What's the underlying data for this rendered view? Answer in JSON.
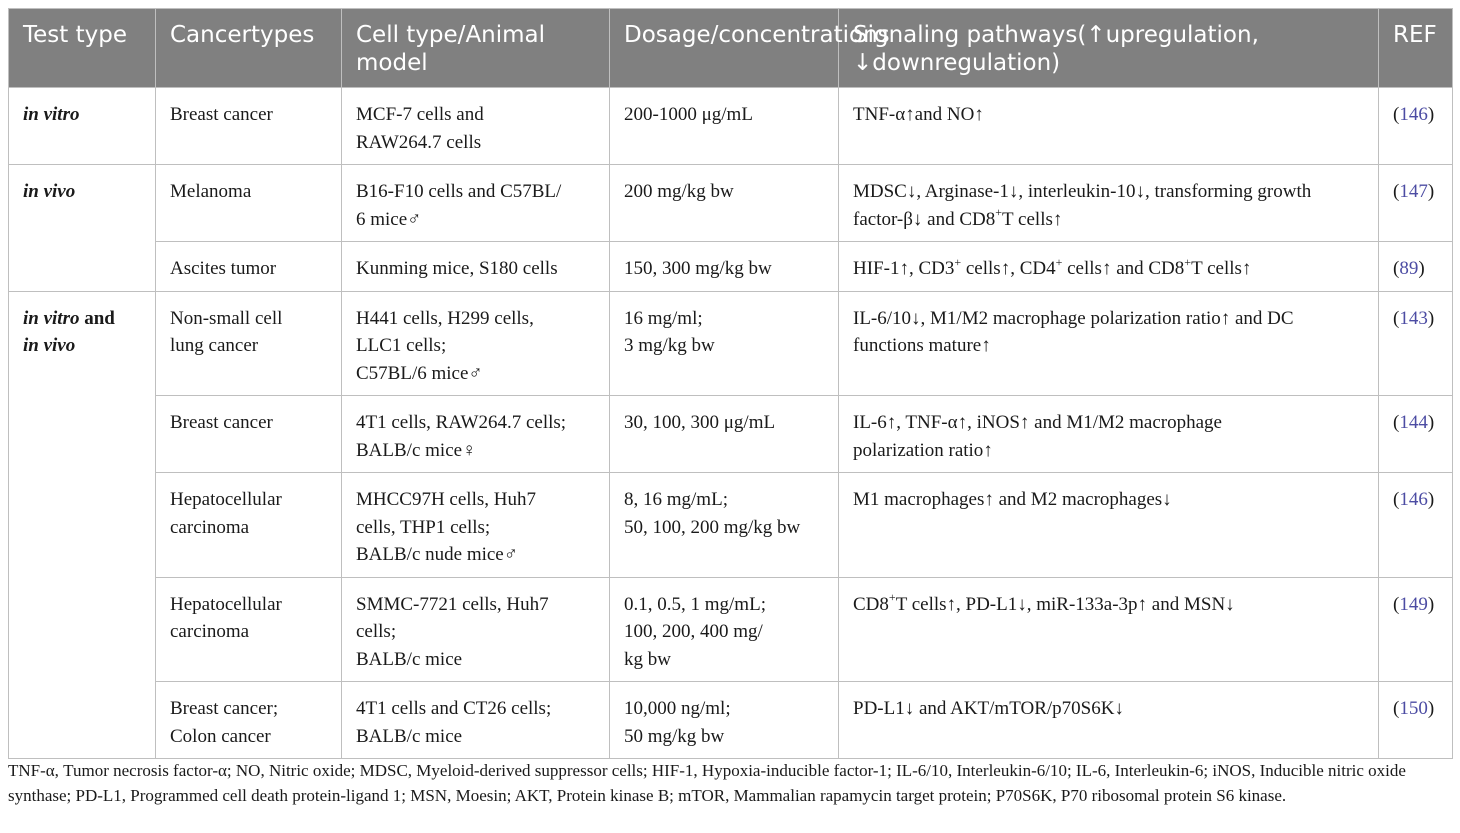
{
  "header": [
    "Test type",
    "Cancer types",
    "Cell type/ Animal model",
    "Dosage/ concentrations",
    "Signaling pathways (↑upregulation, ↓downregulation)",
    "REF"
  ],
  "header_lines": [
    [
      "Test type"
    ],
    [
      "Cancer",
      "types"
    ],
    [
      "Cell type/",
      "Animal model"
    ],
    [
      "Dosage/",
      "concentrations"
    ],
    [
      "Signaling pathways",
      "(↑upregulation, ↓downregulation)"
    ],
    [
      "REF"
    ]
  ],
  "groups": [
    {
      "test_type": "in vitro"
    },
    {
      "test_type": "in vivo"
    },
    {
      "test_type_a": "in vitro",
      "test_type_and": " and",
      "test_type_b": "in vivo"
    }
  ],
  "rows": [
    {
      "cancer": [
        "Breast cancer"
      ],
      "cells": [
        "MCF-7 cells and",
        "RAW264.7 cells"
      ],
      "dosage": [
        "200-1000 μg/mL"
      ],
      "ref": "146"
    },
    {
      "cancer": [
        "Melanoma"
      ],
      "cells": [
        "B16-F10 cells and C57BL/",
        "6 mice♂"
      ],
      "dosage": [
        "200 mg/kg bw"
      ],
      "ref": "147"
    },
    {
      "cancer": [
        "Ascites tumor"
      ],
      "cells": [
        "Kunming mice, S180 cells"
      ],
      "dosage": [
        "150, 300 mg/kg bw"
      ],
      "ref": "89"
    },
    {
      "cancer": [
        "Non-small cell",
        "lung cancer"
      ],
      "cells": [
        "H441 cells, H299 cells,",
        "LLC1 cells;",
        "C57BL/6 mice♂"
      ],
      "dosage": [
        "16 mg/ml;",
        "3 mg/kg bw"
      ],
      "ref": "143"
    },
    {
      "cancer": [
        "Breast cancer"
      ],
      "cells": [
        "4T1 cells, RAW264.7 cells;",
        "BALB/c mice♀"
      ],
      "dosage": [
        "30, 100, 300 μg/mL"
      ],
      "ref": "144"
    },
    {
      "cancer": [
        "Hepatocellular",
        "carcinoma"
      ],
      "cells": [
        "MHCC97H cells, Huh7",
        "cells, THP1 cells;",
        "BALB/c nude mice♂"
      ],
      "dosage": [
        "8, 16 mg/mL;",
        "50, 100, 200 mg/kg bw"
      ],
      "ref": "146"
    },
    {
      "cancer": [
        "Hepatocellular",
        "carcinoma"
      ],
      "cells": [
        "SMMC-7721 cells, Huh7",
        "cells;",
        "BALB/c mice"
      ],
      "dosage": [
        "0.1, 0.5, 1 mg/mL;",
        "100, 200, 400 mg/",
        "kg bw"
      ],
      "ref": "149"
    },
    {
      "cancer": [
        "Breast cancer;",
        "Colon cancer"
      ],
      "cells": [
        "4T1 cells and CT26 cells;",
        "BALB/c mice"
      ],
      "dosage": [
        "10,000 ng/ml;",
        "50 mg/kg bw"
      ],
      "ref": "150"
    }
  ],
  "pathways": {
    "r0": [
      "TNF-α↑and NO↑"
    ],
    "r1_l1": "MDSC↓, Arginase-1↓, interleukin-10↓, transforming growth",
    "r1_l2a": "factor-β↓ and CD8",
    "r1_l2sup": "+",
    "r1_l2b": "T cells↑",
    "r2_a": "HIF-1↑, CD3",
    "r2_s1": "+",
    "r2_b": " cells↑, CD4",
    "r2_s2": "+",
    "r2_c": " cells↑ and CD8",
    "r2_s3": "+",
    "r2_d": "T cells↑",
    "r3": [
      "IL-6/10↓, M1/M2 macrophage polarization ratio↑ and DC",
      "functions mature↑"
    ],
    "r4": [
      "IL-6↑, TNF-α↑, iNOS↑ and M1/M2 macrophage",
      "polarization ratio↑"
    ],
    "r5": [
      "M1 macrophages↑ and M2 macrophages↓"
    ],
    "r6_a": "CD8",
    "r6_sup": "+",
    "r6_b": "T cells↑, PD-L1↓, miR-133a-3p↑ and MSN↓",
    "r7": [
      "PD-L1↓ and AKT/mTOR/p70S6K↓"
    ]
  },
  "footnote": "TNF-α, Tumor necrosis factor-α; NO, Nitric oxide; MDSC, Myeloid-derived suppressor cells; HIF-1, Hypoxia-inducible factor-1; IL-6/10, Interleukin-6/10; IL-6, Interleukin-6; iNOS, Inducible nitric oxide synthase; PD-L1, Programmed cell death protein-ligand 1; MSN, Moesin; AKT, Protein kinase B; mTOR, Mammalian rapamycin target protein; P70S6K, P70 ribosomal protein S6 kinase.",
  "colors": {
    "header_bg": "#808080",
    "ref_link": "#4c4ca3",
    "border": "#bfbfbf"
  }
}
